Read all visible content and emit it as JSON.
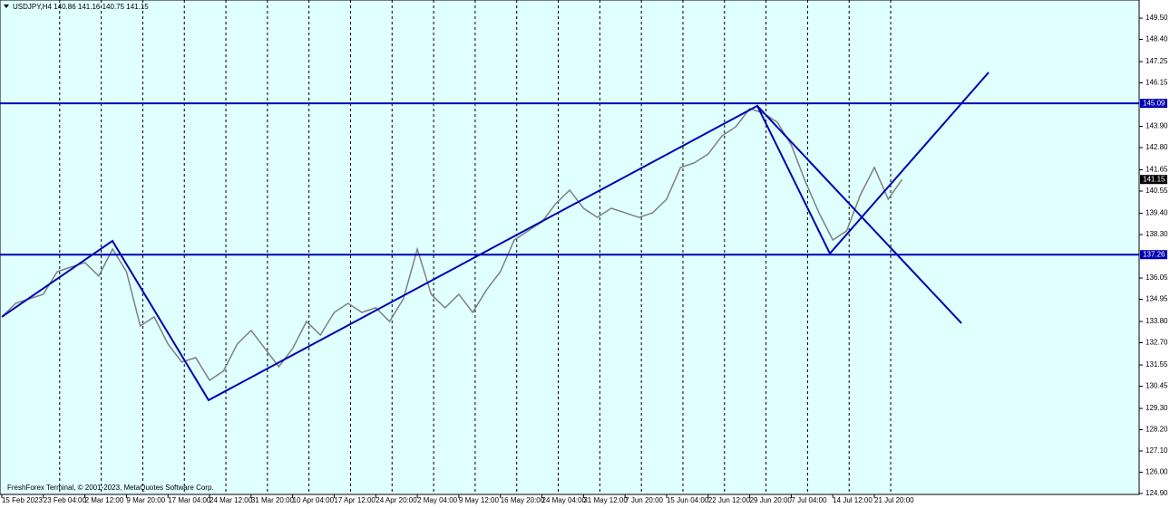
{
  "chart_data": {
    "type": "line",
    "title": "USDJPY,H4 140.86 141.16 140.75 141.15",
    "footer": "FreshForex Terminal, © 2001-2023, MetaQuotes Software Corp.",
    "categories": [
      "15 Feb 2023",
      null,
      null,
      "23 Feb 04:00",
      null,
      null,
      "2 Mar 12:00",
      null,
      null,
      "9 Mar 20:00",
      null,
      null,
      "17 Mar 04:00",
      null,
      null,
      "24 Mar 12:00",
      null,
      null,
      "31 Mar 20:00",
      null,
      null,
      "10 Apr 04:00",
      null,
      null,
      "17 Apr 12:00",
      null,
      null,
      "24 Apr 20:00",
      null,
      null,
      "2 May 04:00",
      null,
      null,
      "9 May 12:00",
      null,
      null,
      "16 May 20:00",
      null,
      null,
      "24 May 04:00",
      null,
      null,
      "31 May 12:00",
      null,
      null,
      "7 Jun 20:00",
      null,
      null,
      "15 Jun 04:00",
      null,
      null,
      "22 Jun 12:00",
      null,
      null,
      "29 Jun 20:00",
      null,
      null,
      "7 Jul 04:00",
      null,
      null,
      "14 Jul 12:00",
      null,
      null,
      "21 Jul 20:00",
      null,
      null
    ],
    "series": [
      {
        "name": "USDJPY",
        "color": "#808080",
        "values": [
          134.04,
          134.74,
          134.98,
          135.21,
          136.38,
          136.62,
          136.85,
          136.15,
          137.55,
          136.38,
          133.57,
          134.04,
          132.63,
          131.7,
          131.93,
          130.76,
          131.23,
          132.63,
          133.34,
          132.4,
          131.46,
          132.4,
          133.8,
          133.1,
          134.27,
          134.74,
          134.27,
          134.51,
          133.8,
          134.98,
          137.55,
          135.21,
          134.51,
          135.21,
          134.27,
          135.44,
          136.38,
          138.02,
          138.49,
          138.96,
          139.9,
          140.6,
          139.66,
          139.19,
          139.66,
          139.43,
          139.19,
          139.43,
          140.13,
          141.77,
          142.01,
          142.47,
          143.41,
          143.88,
          144.82,
          144.58,
          144.11,
          142.94,
          141.07,
          139.43,
          138.02,
          138.49,
          140.37,
          141.77,
          140.13,
          141.15
        ]
      }
    ],
    "xlim": [
      -0.13,
      82.12
    ],
    "ylim": [
      124.85,
      150.44
    ],
    "yticks": [
      {
        "value": 149.5,
        "label": "149.50"
      },
      {
        "value": 148.4,
        "label": "148.40"
      },
      {
        "value": 147.25,
        "label": "147.25"
      },
      {
        "value": 146.15,
        "label": "146.15"
      },
      {
        "value": 143.9,
        "label": "143.90"
      },
      {
        "value": 142.8,
        "label": "142.80"
      },
      {
        "value": 141.65,
        "label": "141.65"
      },
      {
        "value": 140.55,
        "label": "140.55"
      },
      {
        "value": 139.4,
        "label": "139.40"
      },
      {
        "value": 138.3,
        "label": "138.30"
      },
      {
        "value": 136.05,
        "label": "136.05"
      },
      {
        "value": 134.95,
        "label": "134.95"
      },
      {
        "value": 133.8,
        "label": "133.80"
      },
      {
        "value": 132.7,
        "label": "132.70"
      },
      {
        "value": 131.55,
        "label": "131.55"
      },
      {
        "value": 130.45,
        "label": "130.45"
      },
      {
        "value": 129.3,
        "label": "129.30"
      },
      {
        "value": 128.2,
        "label": "128.20"
      },
      {
        "value": 127.1,
        "label": "127.10"
      },
      {
        "value": 126,
        "label": "126.00"
      },
      {
        "value": 124.9,
        "label": "124.90"
      }
    ],
    "levels": [
      {
        "value": 145.09,
        "label": "145.09"
      },
      {
        "value": 137.26,
        "label": "137.26"
      }
    ],
    "last_price": {
      "value": 141.15,
      "label": "141.15"
    },
    "trend_lines": [
      {
        "x": [
          0,
          7.99,
          14.93,
          54.55,
          59.79,
          71.25
        ],
        "y": [
          134.04,
          137.97,
          129.73,
          144.96,
          137.32,
          146.69
        ]
      },
      {
        "x": [
          54.55,
          69.29
        ],
        "y": [
          144.96,
          133.71
        ]
      }
    ],
    "line_color": "#0000b4",
    "background": "#e0ffff",
    "grid": true
  }
}
